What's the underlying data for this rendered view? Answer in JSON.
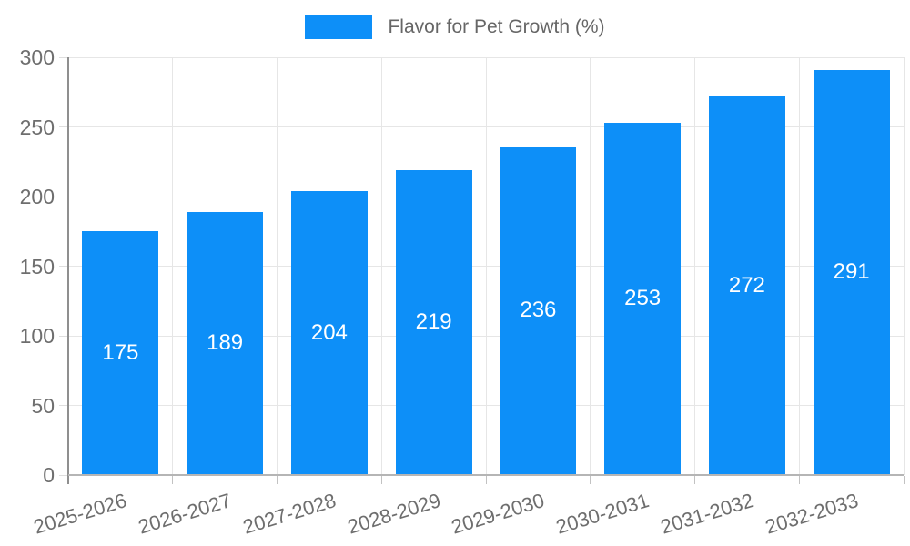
{
  "chart_data": {
    "type": "bar",
    "title": "",
    "legend": {
      "label": "Flavor for Pet Growth (%)",
      "position": "top-center"
    },
    "categories": [
      "2025-2026",
      "2026-2027",
      "2027-2028",
      "2028-2029",
      "2029-2030",
      "2030-2031",
      "2031-2032",
      "2032-2033"
    ],
    "series": [
      {
        "name": "Flavor for Pet Growth (%)",
        "values": [
          175,
          189,
          204,
          219,
          236,
          253,
          272,
          291
        ]
      }
    ],
    "xlabel": "",
    "ylabel": "",
    "ylim": [
      0,
      300
    ],
    "yticks": [
      0,
      50,
      100,
      150,
      200,
      250,
      300
    ],
    "grid": true,
    "value_labels": "inside-center",
    "colors": {
      "bar": "#0d8ff8",
      "value_label": "#ffffff",
      "tick_label": "#6e6e6e",
      "legend_label": "#666666",
      "gridline": "#e6e6e6",
      "y_axis_line": "#8f8f8f",
      "x_axis_line": "#b5b5b5",
      "x_tick_mark": "#c2c2c2",
      "y_tick_mark": "#dedede",
      "background": "#ffffff"
    }
  }
}
